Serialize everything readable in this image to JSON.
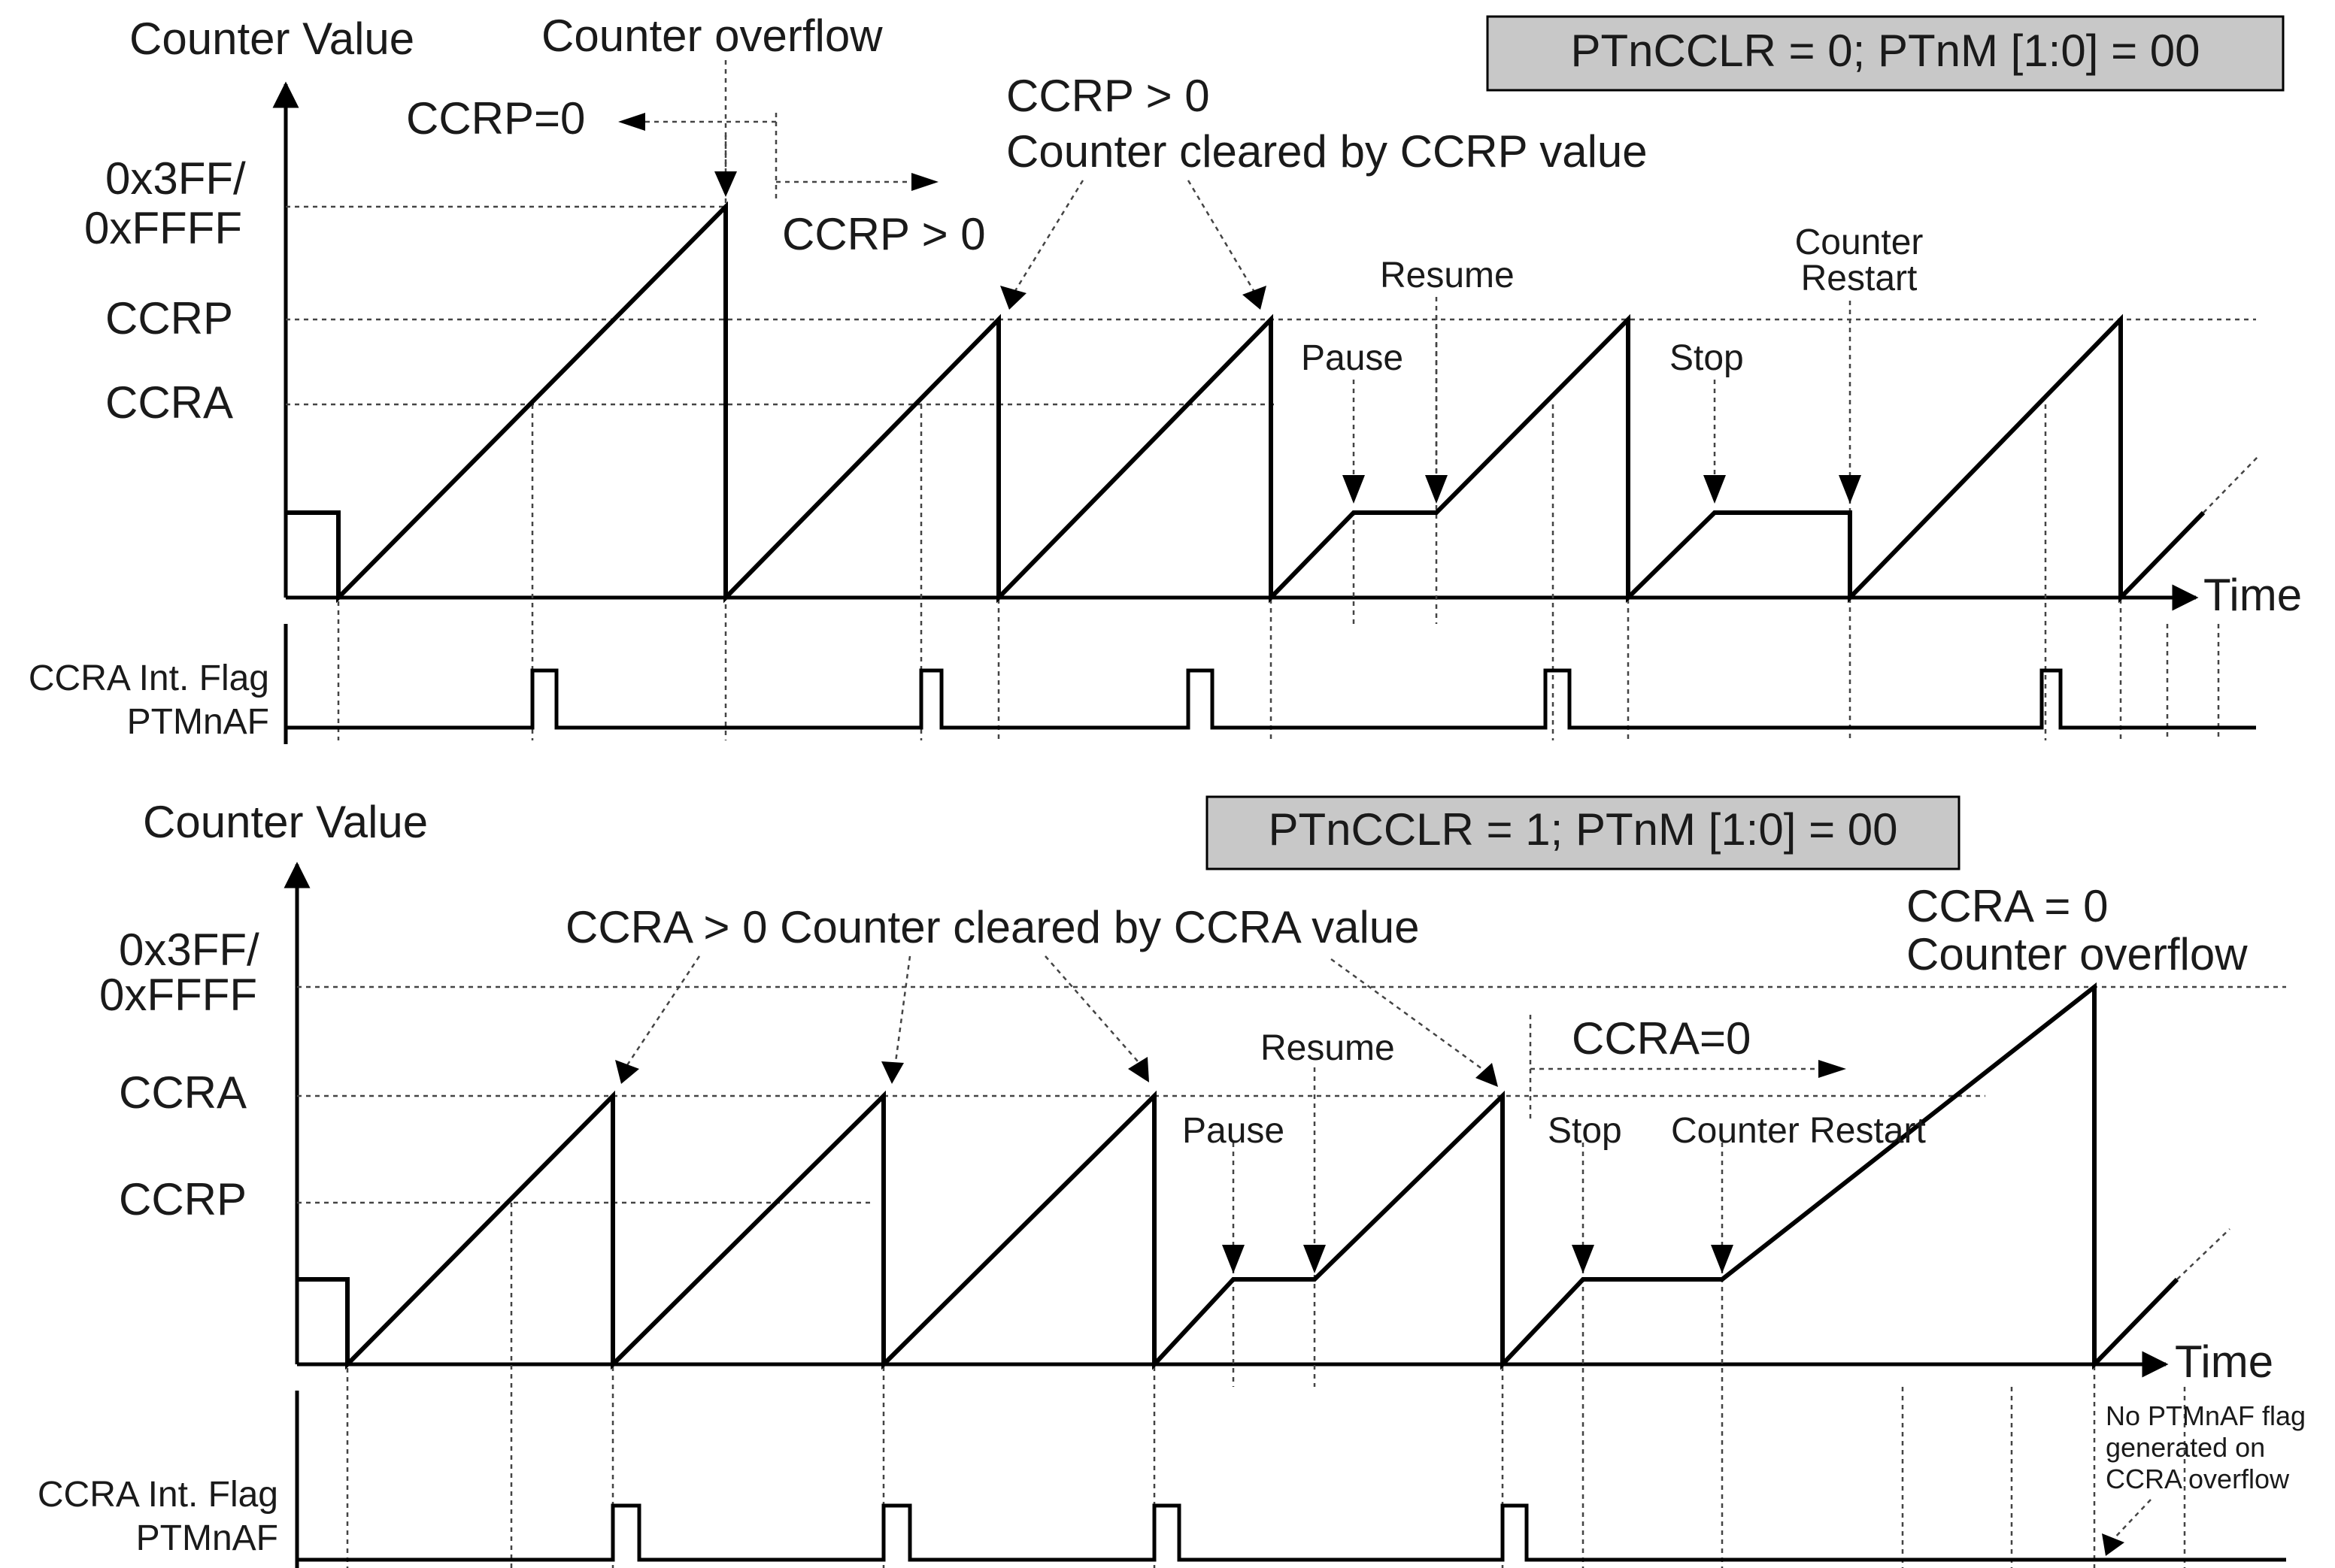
{
  "top": {
    "mode_box": "PTnCCLR = 0; PTnM [1:0] = 00",
    "y_axis_label": "Counter Value",
    "x_axis_label": "Time",
    "y_levels": [
      "0x3FF/",
      "0xFFFF",
      "CCRP",
      "CCRA"
    ],
    "annotations": {
      "counter_overflow": "Counter overflow",
      "ccrp_zero": "CCRP=0",
      "ccrp_gt0_arrow": "CCRP > 0",
      "ccrp_gt0_title": "CCRP > 0",
      "cleared_by": "Counter cleared by CCRP value",
      "pause": "Pause",
      "resume": "Resume",
      "stop": "Stop",
      "counter_restart_1": "Counter",
      "counter_restart_2": "Restart"
    },
    "flag_label_1": "CCRA Int. Flag",
    "flag_label_2": "PTMnAF"
  },
  "bottom": {
    "mode_box": "PTnCCLR = 1; PTnM [1:0] = 00",
    "y_axis_label": "Counter Value",
    "x_axis_label": "Time",
    "y_levels": [
      "0x3FF/",
      "0xFFFF",
      "CCRA",
      "CCRP"
    ],
    "annotations": {
      "cleared_by": "CCRA > 0 Counter cleared by CCRA value",
      "ccra_zero_1": "CCRA = 0",
      "ccra_zero_2": "Counter overflow",
      "ccra_eq0_arrow": "CCRA=0",
      "pause": "Pause",
      "resume": "Resume",
      "stop": "Stop",
      "counter_restart": "Counter Restart",
      "no_flag_1": "No PTMnAF flag",
      "no_flag_2": "generated on",
      "no_flag_3": "CCRA overflow"
    },
    "flag_label_1": "CCRA Int. Flag",
    "flag_label_2": "PTMnAF"
  }
}
